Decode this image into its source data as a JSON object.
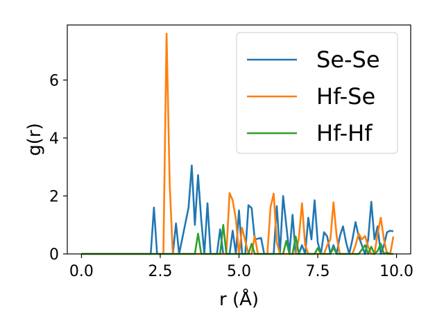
{
  "chart_data": {
    "type": "line",
    "title": "",
    "xlabel": "r (Å)",
    "ylabel": "g(r)",
    "xlim": [
      -0.45,
      10.45
    ],
    "ylim": [
      0,
      7.9
    ],
    "xticks": [
      0.0,
      2.5,
      5.0,
      7.5,
      10.0
    ],
    "xtick_labels": [
      "0.0",
      "2.5",
      "5.0",
      "7.5",
      "10.0"
    ],
    "yticks": [
      0,
      2,
      4,
      6
    ],
    "ytick_labels": [
      "0",
      "2",
      "4",
      "6"
    ],
    "grid": false,
    "legend_position": "top-right",
    "series": [
      {
        "name": "Se-Se",
        "color": "#1f77b4",
        "x": [
          0.0,
          2.2,
          2.3,
          2.4,
          2.6,
          2.9,
          3.0,
          3.1,
          3.4,
          3.5,
          3.6,
          3.7,
          3.8,
          3.9,
          4.0,
          4.1,
          4.3,
          4.4,
          4.5,
          4.6,
          4.7,
          4.8,
          4.9,
          5.0,
          5.1,
          5.2,
          5.3,
          5.4,
          5.5,
          5.7,
          5.8,
          5.9,
          6.0,
          6.1,
          6.2,
          6.3,
          6.4,
          6.5,
          6.6,
          6.7,
          6.8,
          6.9,
          7.0,
          7.1,
          7.2,
          7.3,
          7.4,
          7.5,
          7.6,
          7.7,
          7.8,
          7.9,
          8.0,
          8.1,
          8.2,
          8.3,
          8.4,
          8.5,
          8.6,
          8.7,
          8.8,
          8.9,
          9.0,
          9.1,
          9.2,
          9.3,
          9.4,
          9.5,
          9.6,
          9.7,
          9.8,
          9.9
        ],
        "y": [
          0.0,
          0.0,
          1.6,
          0.0,
          0.0,
          0.0,
          1.05,
          0.0,
          1.6,
          3.05,
          1.0,
          2.72,
          1.2,
          0.0,
          1.75,
          0.0,
          0.0,
          0.85,
          0.0,
          0.0,
          0.0,
          0.8,
          0.0,
          1.5,
          0.0,
          0.0,
          1.68,
          1.58,
          0.5,
          0.55,
          0.0,
          0.0,
          0.0,
          0.0,
          1.65,
          0.0,
          2.0,
          1.0,
          0.0,
          1.35,
          0.0,
          0.0,
          0.3,
          0.0,
          1.25,
          0.5,
          1.85,
          0.4,
          0.0,
          0.75,
          0.6,
          0.0,
          0.3,
          0.0,
          0.6,
          0.95,
          0.4,
          0.0,
          0.5,
          1.1,
          0.6,
          0.3,
          0.0,
          0.5,
          1.8,
          0.5,
          0.95,
          0.0,
          0.3,
          0.75,
          0.8,
          0.78
        ]
      },
      {
        "name": "Hf-Se",
        "color": "#ff7f0e",
        "x": [
          0.0,
          2.6,
          2.7,
          2.8,
          2.9,
          4.6,
          4.7,
          4.8,
          4.9,
          5.0,
          5.1,
          5.3,
          5.4,
          5.5,
          5.6,
          5.7,
          5.8,
          5.9,
          6.0,
          6.1,
          6.2,
          6.3,
          6.4,
          6.5,
          6.6,
          6.8,
          6.9,
          7.0,
          7.1,
          7.2,
          7.3,
          7.4,
          7.5,
          7.6,
          7.7,
          7.8,
          7.9,
          8.0,
          8.1,
          8.2,
          8.3,
          8.4,
          8.6,
          8.7,
          8.8,
          8.9,
          9.0,
          9.1,
          9.2,
          9.3,
          9.4,
          9.5,
          9.6,
          9.7,
          9.8,
          9.9
        ],
        "y": [
          0.0,
          0.0,
          7.6,
          2.4,
          0.0,
          0.0,
          2.1,
          1.85,
          1.2,
          0.0,
          0.9,
          0.0,
          0.0,
          0.62,
          0.0,
          0.0,
          0.0,
          0.0,
          1.6,
          2.08,
          0.4,
          0.0,
          0.0,
          0.0,
          0.0,
          0.0,
          0.55,
          1.75,
          0.3,
          0.0,
          0.0,
          0.0,
          0.0,
          0.0,
          0.0,
          0.3,
          0.5,
          1.78,
          0.6,
          0.0,
          0.0,
          0.0,
          0.0,
          0.3,
          0.7,
          0.5,
          0.62,
          0.25,
          0.0,
          0.0,
          0.7,
          1.25,
          0.5,
          0.0,
          0.0,
          0.6
        ]
      },
      {
        "name": "Hf-Hf",
        "color": "#2ca02c",
        "x": [
          0.0,
          3.6,
          3.7,
          3.8,
          4.3,
          4.4,
          4.5,
          4.6,
          5.3,
          5.4,
          5.5,
          6.4,
          6.5,
          6.6,
          6.7,
          6.8,
          6.9,
          7.4,
          7.5,
          7.6,
          7.9,
          8.0,
          8.1,
          8.8,
          8.9,
          9.0,
          9.1,
          9.2,
          9.3,
          9.4,
          9.5,
          9.6,
          9.7,
          9.8,
          9.9
        ],
        "y": [
          0.0,
          0.0,
          0.7,
          0.0,
          0.0,
          0.0,
          1.0,
          0.0,
          0.0,
          0.35,
          0.0,
          0.0,
          0.45,
          0.0,
          0.0,
          0.6,
          0.0,
          0.0,
          0.2,
          0.0,
          0.0,
          0.22,
          0.0,
          0.0,
          0.15,
          0.3,
          0.0,
          0.25,
          0.0,
          0.1,
          0.35,
          0.0,
          0.05,
          0.0,
          0.0
        ]
      }
    ]
  }
}
